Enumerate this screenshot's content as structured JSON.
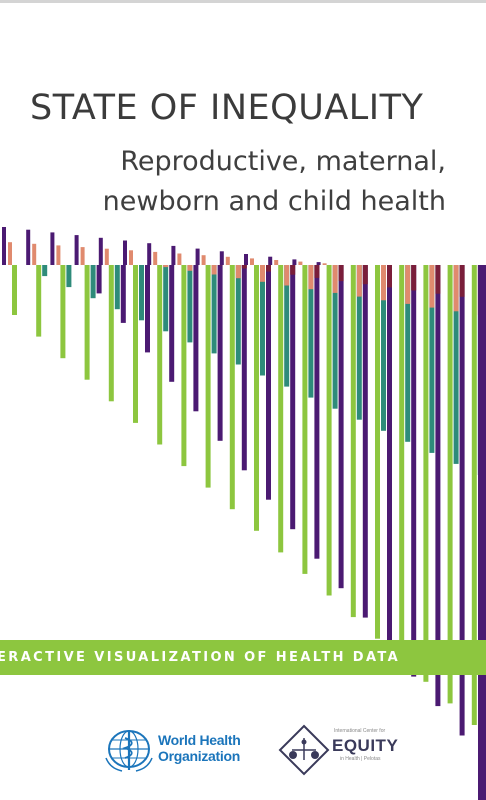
{
  "cover": {
    "title": "STATE OF INEQUALITY",
    "subtitle_line1": "Reproductive, maternal,",
    "subtitle_line2": "newborn and child health",
    "banner": "ERACTIVE VISUALIZATION OF HEALTH DATA"
  },
  "logos": {
    "who_line1": "World Health",
    "who_line2": "Organization",
    "equity_small_top": "International Center for",
    "equity_name": "EQUITY",
    "equity_small_bottom": "in Health | Pelotas"
  },
  "colors": {
    "green": "#8dc63f",
    "purple": "#4b1a72",
    "teal": "#2e8b7a",
    "salmon": "#e08a6e",
    "maroon": "#7a1e3a",
    "who_blue": "#1b75bb"
  }
}
